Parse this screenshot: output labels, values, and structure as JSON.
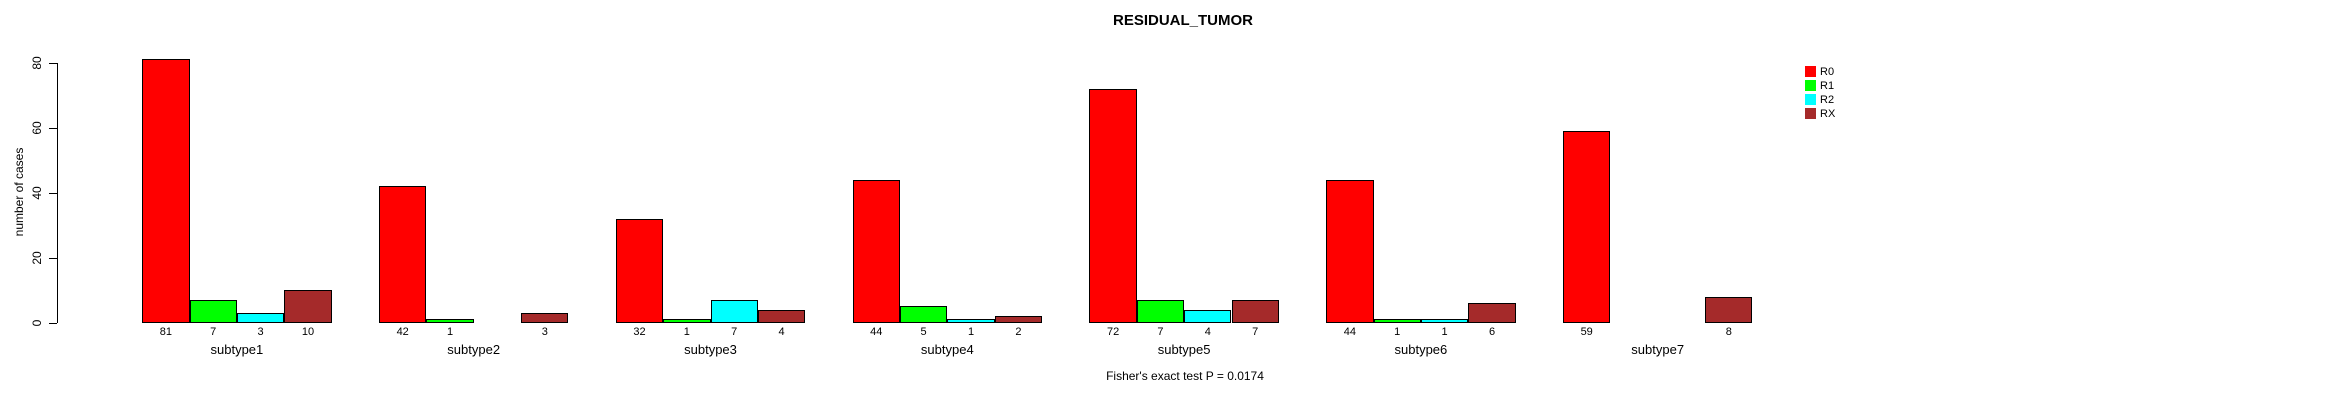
{
  "chart_data": {
    "type": "bar",
    "title": "RESIDUAL_TUMOR",
    "ylabel": "number of cases",
    "xlabel": "",
    "annotation": "Fisher's exact test P = 0.0174",
    "categories": [
      "subtype1",
      "subtype2",
      "subtype3",
      "subtype4",
      "subtype5",
      "subtype6",
      "subtype7"
    ],
    "series": [
      {
        "name": "R0",
        "color": "#FF0000",
        "values": [
          81,
          42,
          32,
          44,
          72,
          44,
          59
        ]
      },
      {
        "name": "R1",
        "color": "#00FF00",
        "values": [
          7,
          1,
          1,
          5,
          7,
          1,
          0
        ]
      },
      {
        "name": "R2",
        "color": "#00FFFF",
        "values": [
          3,
          0,
          7,
          1,
          4,
          1,
          0
        ]
      },
      {
        "name": "RX",
        "color": "#A52A2A",
        "values": [
          10,
          3,
          4,
          2,
          7,
          6,
          8
        ]
      }
    ],
    "value_labels_shown": true,
    "zero_values_unlabeled": true,
    "yticks": [
      0,
      20,
      40,
      60,
      80
    ],
    "ylim": [
      0,
      80
    ],
    "grid": false,
    "legend_position": "right",
    "bar_border_color": "#000000",
    "background_color": "#FFFFFF",
    "text_color": "#000000"
  }
}
